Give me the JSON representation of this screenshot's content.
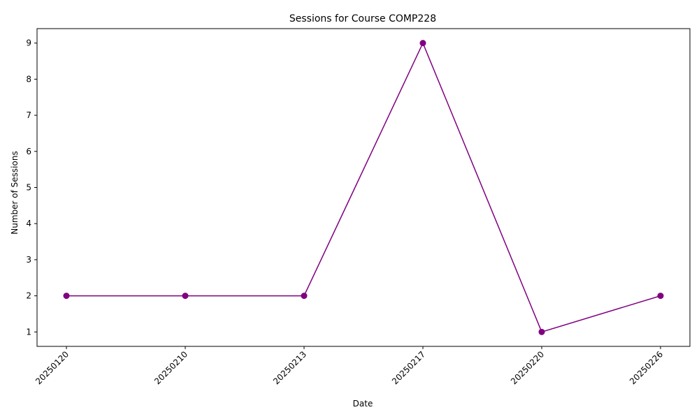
{
  "chart_data": {
    "type": "line",
    "title": "Sessions for Course COMP228",
    "xlabel": "Date",
    "ylabel": "Number of Sessions",
    "categories": [
      "20250120",
      "20250210",
      "20250213",
      "20250217",
      "20250220",
      "20250226"
    ],
    "series": [
      {
        "values": [
          2,
          2,
          2,
          9,
          1,
          2
        ]
      }
    ],
    "ylim": [
      0.6,
      9.4
    ],
    "yticks": [
      1,
      2,
      3,
      4,
      5,
      6,
      7,
      8,
      9
    ],
    "grid": false,
    "legend": "none",
    "x_tick_rotation": "45 degrees",
    "colors": {
      "line": "#800080",
      "marker": "#800080"
    },
    "marker": "circle"
  }
}
